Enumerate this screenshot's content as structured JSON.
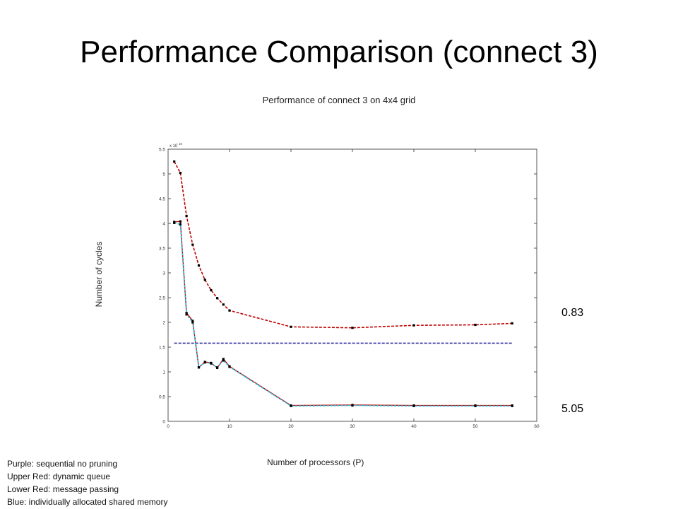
{
  "slide_title": "Performance Comparison (connect 3)",
  "legend_text": [
    "Purple: sequential no pruning",
    "Upper Red:  dynamic queue",
    "Lower Red: message passing",
    "Blue: individually allocated shared memory"
  ],
  "annotations": {
    "top_ratio": "0.83",
    "bottom_ratio": "5.05"
  },
  "colors": {
    "dynamic_queue": "#c00000",
    "message_passing": "#c00000",
    "shared_memory": "#1ec8e6",
    "sequential": "#3030a0",
    "markers": "#000000"
  },
  "chart_data": {
    "type": "line",
    "title": "Performance of connect 3 on 4x4 grid",
    "xlabel": "Number of processors (P)",
    "ylabel": "Number of cycles",
    "y_multiplier_label": "x 10",
    "y_multiplier_exponent": "10",
    "xlim": [
      0,
      60
    ],
    "ylim": [
      0,
      5.5
    ],
    "xticks": [
      0,
      10,
      20,
      30,
      40,
      50,
      60
    ],
    "yticks": [
      0,
      0.5,
      1,
      1.5,
      2,
      2.5,
      3,
      3.5,
      4,
      4.5,
      5,
      5.5
    ],
    "ytick_labels": [
      "0",
      "0.5",
      "1",
      "1.5",
      "2",
      "2.5",
      "3",
      "3.5",
      "4",
      "4.5",
      "5",
      "5.5"
    ],
    "grid": false,
    "series": [
      {
        "key": "dynamic_queue",
        "style": "dashed",
        "x": [
          1,
          2,
          3,
          4,
          5,
          6,
          7,
          8,
          9,
          10,
          20,
          30,
          40,
          50,
          56
        ],
        "y": [
          5.25,
          5.02,
          4.15,
          3.57,
          3.15,
          2.86,
          2.65,
          2.49,
          2.36,
          2.24,
          1.91,
          1.89,
          1.94,
          1.95,
          1.98
        ]
      },
      {
        "key": "message_passing",
        "style": "solid",
        "x": [
          1,
          2,
          3,
          4,
          5,
          6,
          7,
          8,
          9,
          10,
          20,
          30,
          40,
          50,
          56
        ],
        "y": [
          4.03,
          4.04,
          2.19,
          2.03,
          1.09,
          1.2,
          1.18,
          1.08,
          1.26,
          1.11,
          0.32,
          0.33,
          0.32,
          0.32,
          0.32
        ]
      },
      {
        "key": "shared_memory",
        "style": "dashed",
        "x": [
          1,
          2,
          3,
          4,
          5,
          6,
          7,
          8,
          9,
          10,
          20,
          30,
          40,
          50,
          56
        ],
        "y": [
          4.01,
          3.98,
          2.16,
          2.0,
          1.09,
          1.19,
          1.17,
          1.09,
          1.23,
          1.1,
          0.31,
          0.32,
          0.31,
          0.31,
          0.31
        ]
      },
      {
        "key": "sequential",
        "style": "dashed",
        "x": [
          1,
          56
        ],
        "y": [
          1.58,
          1.58
        ]
      }
    ]
  }
}
